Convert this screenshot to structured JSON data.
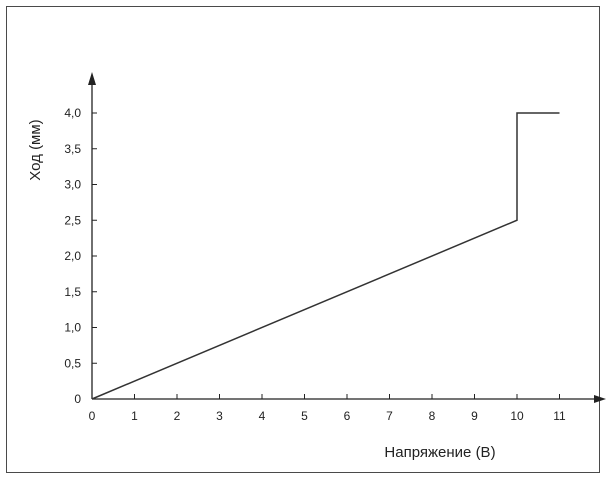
{
  "chart_data": {
    "type": "line",
    "title": "",
    "xlabel": "Напряжение (В)",
    "ylabel": "Ход (мм)",
    "xlim": [
      0,
      11.9
    ],
    "ylim": [
      0,
      4.6
    ],
    "x_ticks": [
      0,
      1,
      2,
      3,
      4,
      5,
      6,
      7,
      8,
      9,
      10,
      11
    ],
    "x_tick_labels": [
      "0",
      "1",
      "2",
      "3",
      "4",
      "5",
      "6",
      "7",
      "8",
      "9",
      "10",
      "11"
    ],
    "y_ticks": [
      0,
      0.5,
      1.0,
      1.5,
      2.0,
      2.5,
      3.0,
      3.5,
      4.0
    ],
    "y_tick_labels": [
      "0",
      "0,5",
      "1,0",
      "1,5",
      "2,0",
      "2,5",
      "3,0",
      "3,5",
      "4,0"
    ],
    "grid": false,
    "series": [
      {
        "x": [
          0,
          10,
          10,
          11
        ],
        "y": [
          0,
          2.5,
          4.0,
          4.0
        ]
      }
    ]
  },
  "colors": {
    "line": "#333333",
    "axis": "#222222",
    "frame": "#4a4a4a"
  }
}
